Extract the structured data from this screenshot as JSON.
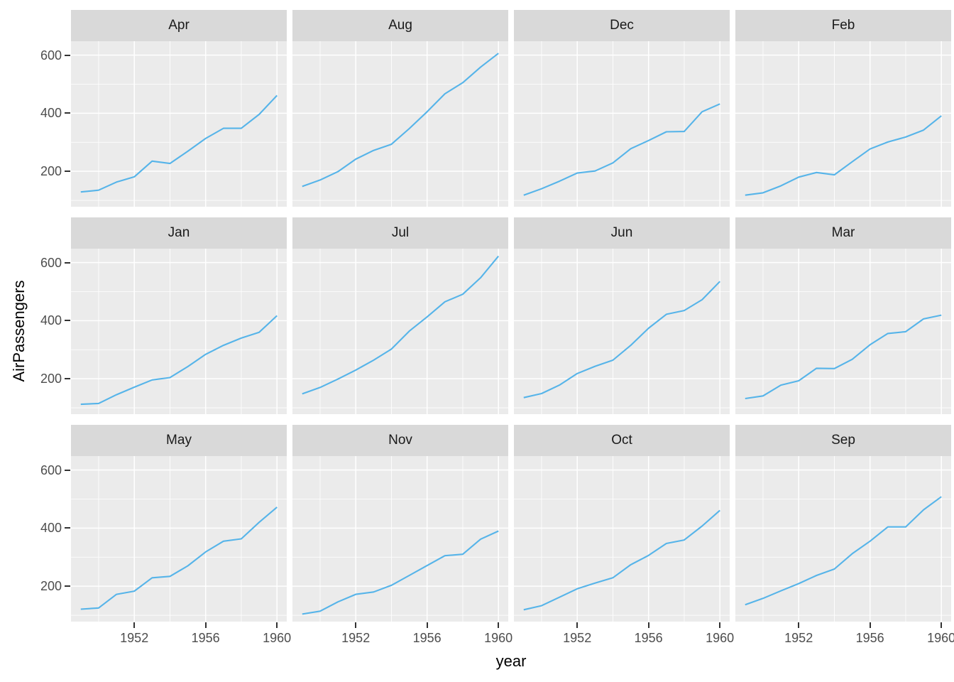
{
  "chart_data": {
    "type": "line",
    "title": "",
    "xlabel": "year",
    "ylabel": "AirPassengers",
    "x": [
      1949,
      1950,
      1951,
      1952,
      1953,
      1954,
      1955,
      1956,
      1957,
      1958,
      1959,
      1960
    ],
    "x_ticks": [
      1952,
      1956,
      1960
    ],
    "x_minor": [
      1950,
      1954,
      1958
    ],
    "y_ticks": [
      600,
      400,
      200
    ],
    "y_minor": [
      100,
      300,
      500
    ],
    "xlim": [
      1948.45,
      1960.55
    ],
    "ylim": [
      78.1,
      647.9
    ],
    "grid": "on",
    "legend": "none",
    "line_color": "#56B4E9",
    "panel_bg": "#EBEBEB",
    "strip_bg": "#D9D9D9",
    "grid_color": "#FFFFFF",
    "tick_label_color": "#4D4D4D",
    "facets": [
      {
        "label": "Apr",
        "values": [
          129,
          135,
          163,
          181,
          235,
          227,
          269,
          313,
          348,
          348,
          396,
          461
        ]
      },
      {
        "label": "Aug",
        "values": [
          148,
          170,
          199,
          242,
          272,
          293,
          347,
          405,
          467,
          505,
          559,
          606
        ]
      },
      {
        "label": "Dec",
        "values": [
          118,
          140,
          166,
          194,
          201,
          229,
          278,
          306,
          336,
          337,
          405,
          432
        ]
      },
      {
        "label": "Feb",
        "values": [
          118,
          126,
          150,
          180,
          196,
          188,
          233,
          277,
          301,
          318,
          342,
          391
        ]
      },
      {
        "label": "Jan",
        "values": [
          112,
          115,
          145,
          171,
          196,
          204,
          242,
          284,
          315,
          340,
          360,
          417
        ]
      },
      {
        "label": "Jul",
        "values": [
          148,
          170,
          199,
          230,
          264,
          302,
          364,
          413,
          465,
          491,
          548,
          622
        ]
      },
      {
        "label": "Jun",
        "values": [
          135,
          149,
          178,
          218,
          243,
          264,
          315,
          374,
          422,
          435,
          472,
          535
        ]
      },
      {
        "label": "Mar",
        "values": [
          132,
          141,
          178,
          193,
          236,
          235,
          267,
          317,
          356,
          362,
          406,
          419
        ]
      },
      {
        "label": "May",
        "values": [
          121,
          125,
          172,
          183,
          229,
          234,
          270,
          318,
          355,
          363,
          420,
          472
        ]
      },
      {
        "label": "Nov",
        "values": [
          104,
          114,
          146,
          172,
          180,
          203,
          237,
          271,
          305,
          310,
          362,
          390
        ]
      },
      {
        "label": "Oct",
        "values": [
          119,
          133,
          162,
          191,
          211,
          229,
          274,
          306,
          347,
          359,
          407,
          461
        ]
      },
      {
        "label": "Sep",
        "values": [
          136,
          158,
          184,
          209,
          237,
          259,
          312,
          355,
          404,
          404,
          463,
          508
        ]
      }
    ]
  }
}
